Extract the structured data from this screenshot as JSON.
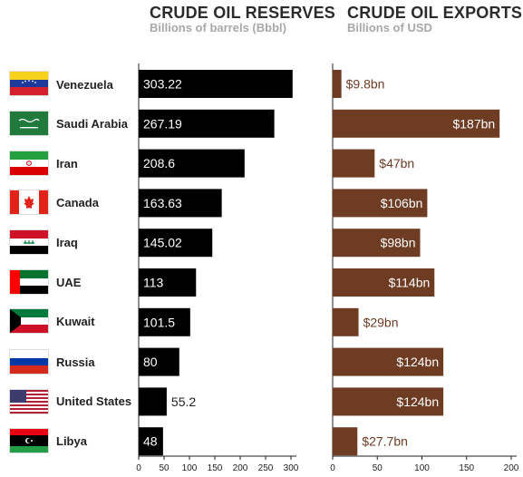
{
  "header": {
    "reserves_title": "CRUDE OIL RESERVES",
    "reserves_subtitle": "Billions of barrels (Bbbl)",
    "exports_title": "CRUDE OIL EXPORTS",
    "exports_subtitle": "Billions of USD"
  },
  "chart_data": [
    {
      "type": "bar",
      "orientation": "horizontal",
      "title": "CRUDE OIL RESERVES",
      "subtitle": "Billions of barrels (Bbbl)",
      "categories": [
        "Venezuela",
        "Saudi Arabia",
        "Iran",
        "Canada",
        "Iraq",
        "UAE",
        "Kuwait",
        "Russia",
        "United States",
        "Libya"
      ],
      "values": [
        303.22,
        267.19,
        208.6,
        163.63,
        145.02,
        113,
        101.5,
        80,
        55.2,
        48
      ],
      "data_labels": [
        "303.22",
        "267.19",
        "208.6",
        "163.63",
        "145.02",
        "113",
        "101.5",
        "80",
        "55.2",
        "48"
      ],
      "xlim": [
        0,
        300
      ],
      "ticks": [
        0,
        50,
        100,
        150,
        200,
        250,
        300
      ],
      "bar_color": "#000000",
      "label_color": "#ffffff",
      "grid": false
    },
    {
      "type": "bar",
      "orientation": "horizontal",
      "title": "CRUDE OIL EXPORTS",
      "subtitle": "Billions of USD",
      "categories": [
        "Venezuela",
        "Saudi Arabia",
        "Iran",
        "Canada",
        "Iraq",
        "UAE",
        "Kuwait",
        "Russia",
        "United States",
        "Libya"
      ],
      "values": [
        9.8,
        187,
        47,
        106,
        98,
        114,
        29,
        124,
        124,
        27.7
      ],
      "data_labels": [
        "$9.8bn",
        "$187bn",
        "$47bn",
        "$106bn",
        "$98bn",
        "$114bn",
        "$29bn",
        "$124bn",
        "$124bn",
        "$27.7bn"
      ],
      "xlim": [
        0,
        200
      ],
      "ticks": [
        0,
        50,
        100,
        150,
        200
      ],
      "bar_color": "#6e3b23",
      "label_color_inside": "#ffffff",
      "label_color_outside": "#6e3b23",
      "grid": false
    }
  ],
  "flags": [
    "venezuela-flag-icon",
    "saudi-arabia-flag-icon",
    "iran-flag-icon",
    "canada-flag-icon",
    "iraq-flag-icon",
    "uae-flag-icon",
    "kuwait-flag-icon",
    "russia-flag-icon",
    "united-states-flag-icon",
    "libya-flag-icon"
  ]
}
